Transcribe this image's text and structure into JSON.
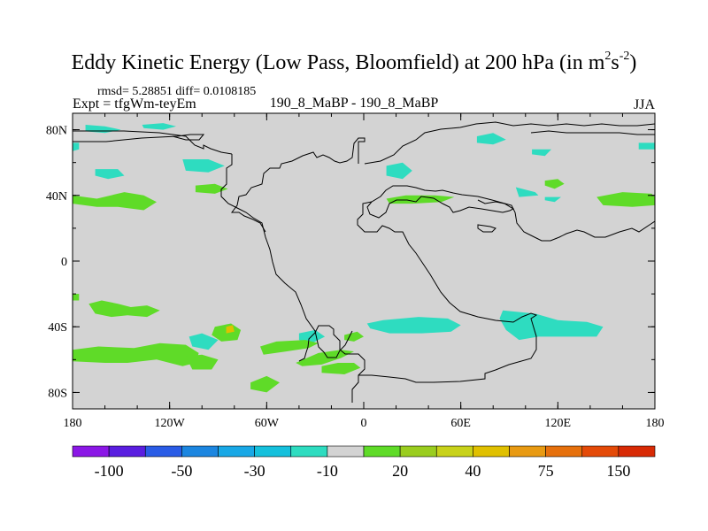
{
  "title": {
    "main": "Eddy Kinetic Energy (Low Pass, Bloomfield) at 200 hPa (in m",
    "sup1": "2",
    "mid": "s",
    "sup2": "-2",
    "end": ")"
  },
  "stats": {
    "rmsd_text": "rmsd= 5.28851 diff= 0.0108185"
  },
  "expt_label": "Expt = tfgWm-teyEm",
  "subtitle": "190_8_MaBP - 190_8_MaBP",
  "season": "JJA",
  "colors": {
    "background": "#d3d3d3",
    "map_bg": "#d3d3d3",
    "coast": "#000000",
    "pos_light": "#5fdb28",
    "neg_light": "#2edcc0",
    "pos_mid": "#e0c000"
  },
  "chart_data": {
    "type": "heatmap",
    "title": "Eddy Kinetic Energy (Low Pass, Bloomfield) at 200 hPa (in m2s-2)",
    "subtitle": "190_8_MaBP - 190_8_MaBP",
    "season": "JJA",
    "xlim": [
      -180,
      180
    ],
    "ylim": [
      -90,
      90
    ],
    "x_ticks": [
      {
        "value": -180,
        "label": "180"
      },
      {
        "value": -120,
        "label": "120W"
      },
      {
        "value": -60,
        "label": "60W"
      },
      {
        "value": 0,
        "label": "0"
      },
      {
        "value": 60,
        "label": "60E"
      },
      {
        "value": 120,
        "label": "120E"
      },
      {
        "value": 180,
        "label": "180"
      }
    ],
    "y_ticks": [
      {
        "value": 80,
        "label": "80N"
      },
      {
        "value": 40,
        "label": "40N"
      },
      {
        "value": 0,
        "label": "0"
      },
      {
        "value": -40,
        "label": "40S"
      },
      {
        "value": -80,
        "label": "80S"
      }
    ],
    "colorbar": {
      "colors": [
        "#8b17e6",
        "#5a1ee0",
        "#2a5ce6",
        "#1c86e0",
        "#19a8e6",
        "#15c0dc",
        "#2edcc0",
        "#d3d3d3",
        "#5fdb28",
        "#9acd1f",
        "#c8d21a",
        "#e0c000",
        "#e89a12",
        "#e6700c",
        "#e44a08",
        "#d82a05"
      ],
      "labels": [
        {
          "boundary": 1,
          "text": "-100"
        },
        {
          "boundary": 3,
          "text": "-50"
        },
        {
          "boundary": 5,
          "text": "-30"
        },
        {
          "boundary": 7,
          "text": "-10"
        },
        {
          "boundary": 9,
          "text": "20"
        },
        {
          "boundary": 11,
          "text": "40"
        },
        {
          "boundary": 13,
          "text": "75"
        },
        {
          "boundary": 15,
          "text": "150"
        }
      ]
    },
    "regions": [
      {
        "level": "neg",
        "pts": [
          [
            -172,
            83
          ],
          [
            -160,
            82
          ],
          [
            -150,
            80
          ],
          [
            -160,
            78
          ],
          [
            -172,
            79
          ]
        ]
      },
      {
        "level": "neg",
        "pts": [
          [
            -137,
            83
          ],
          [
            -124,
            84
          ],
          [
            -116,
            82
          ],
          [
            -124,
            80
          ],
          [
            -136,
            81
          ]
        ]
      },
      {
        "level": "neg",
        "pts": [
          [
            -180,
            72
          ],
          [
            -176,
            72
          ],
          [
            -176,
            68
          ],
          [
            -180,
            67
          ]
        ]
      },
      {
        "level": "neg",
        "pts": [
          [
            -166,
            56
          ],
          [
            -152,
            56
          ],
          [
            -148,
            52
          ],
          [
            -158,
            50
          ],
          [
            -166,
            52
          ]
        ]
      },
      {
        "level": "neg",
        "pts": [
          [
            -112,
            62
          ],
          [
            -96,
            62
          ],
          [
            -86,
            58
          ],
          [
            -96,
            54
          ],
          [
            -110,
            55
          ]
        ]
      },
      {
        "level": "neg",
        "pts": [
          [
            14,
            58
          ],
          [
            24,
            60
          ],
          [
            30,
            55
          ],
          [
            24,
            50
          ],
          [
            14,
            52
          ]
        ]
      },
      {
        "level": "neg",
        "pts": [
          [
            70,
            76
          ],
          [
            80,
            78
          ],
          [
            88,
            74
          ],
          [
            80,
            71
          ],
          [
            70,
            72
          ]
        ]
      },
      {
        "level": "neg",
        "pts": [
          [
            104,
            68
          ],
          [
            116,
            68
          ],
          [
            112,
            64
          ],
          [
            104,
            65
          ]
        ]
      },
      {
        "level": "neg",
        "pts": [
          [
            170,
            72
          ],
          [
            180,
            72
          ],
          [
            180,
            68
          ],
          [
            170,
            68
          ]
        ]
      },
      {
        "level": "neg",
        "pts": [
          [
            94,
            45
          ],
          [
            106,
            42
          ],
          [
            108,
            40
          ],
          [
            96,
            39
          ]
        ]
      },
      {
        "level": "neg",
        "pts": [
          [
            112,
            39
          ],
          [
            122,
            39
          ],
          [
            118,
            36
          ],
          [
            112,
            37
          ]
        ]
      },
      {
        "level": "neg",
        "pts": [
          [
            2,
            -38
          ],
          [
            12,
            -36
          ],
          [
            34,
            -34
          ],
          [
            52,
            -35
          ],
          [
            60,
            -39
          ],
          [
            54,
            -43
          ],
          [
            36,
            -44
          ],
          [
            16,
            -44
          ],
          [
            4,
            -41
          ]
        ]
      },
      {
        "level": "neg",
        "pts": [
          [
            86,
            -30
          ],
          [
            106,
            -32
          ],
          [
            120,
            -36
          ],
          [
            138,
            -37
          ],
          [
            148,
            -40
          ],
          [
            144,
            -46
          ],
          [
            126,
            -46
          ],
          [
            108,
            -46
          ],
          [
            96,
            -48
          ],
          [
            88,
            -42
          ],
          [
            84,
            -35
          ]
        ]
      },
      {
        "level": "neg",
        "pts": [
          [
            -108,
            -46
          ],
          [
            -100,
            -44
          ],
          [
            -90,
            -48
          ],
          [
            -96,
            -54
          ],
          [
            -106,
            -52
          ]
        ]
      },
      {
        "level": "neg",
        "pts": [
          [
            -40,
            -44
          ],
          [
            -30,
            -42
          ],
          [
            -24,
            -46
          ],
          [
            -32,
            -50
          ],
          [
            -40,
            -48
          ]
        ]
      },
      {
        "level": "pos",
        "pts": [
          [
            -180,
            40
          ],
          [
            -165,
            38
          ],
          [
            -148,
            42
          ],
          [
            -136,
            40
          ],
          [
            -128,
            36
          ],
          [
            -136,
            31
          ],
          [
            -152,
            33
          ],
          [
            -165,
            33
          ],
          [
            -180,
            35
          ]
        ]
      },
      {
        "level": "pos",
        "pts": [
          [
            -104,
            46
          ],
          [
            -92,
            47
          ],
          [
            -84,
            44
          ],
          [
            -92,
            41
          ],
          [
            -104,
            42
          ]
        ]
      },
      {
        "level": "pos",
        "pts": [
          [
            14,
            38
          ],
          [
            26,
            40
          ],
          [
            44,
            40
          ],
          [
            56,
            39
          ],
          [
            48,
            36
          ],
          [
            30,
            35
          ],
          [
            16,
            35
          ]
        ]
      },
      {
        "level": "pos",
        "pts": [
          [
            112,
            49
          ],
          [
            120,
            50
          ],
          [
            124,
            47
          ],
          [
            118,
            44
          ],
          [
            112,
            46
          ]
        ]
      },
      {
        "level": "pos",
        "pts": [
          [
            144,
            39
          ],
          [
            160,
            42
          ],
          [
            178,
            41
          ],
          [
            180,
            39
          ],
          [
            180,
            34
          ],
          [
            166,
            33
          ],
          [
            148,
            34
          ]
        ]
      },
      {
        "level": "pos",
        "pts": [
          [
            -170,
            -26
          ],
          [
            -162,
            -24
          ],
          [
            -152,
            -26
          ],
          [
            -144,
            -28
          ],
          [
            -134,
            -27
          ],
          [
            -126,
            -30
          ],
          [
            -134,
            -34
          ],
          [
            -146,
            -33
          ],
          [
            -156,
            -34
          ],
          [
            -166,
            -32
          ]
        ]
      },
      {
        "level": "pos",
        "pts": [
          [
            -92,
            -40
          ],
          [
            -82,
            -38
          ],
          [
            -76,
            -42
          ],
          [
            -78,
            -48
          ],
          [
            -88,
            -49
          ],
          [
            -94,
            -45
          ]
        ]
      },
      {
        "level": "pos",
        "pts": [
          [
            -180,
            -54
          ],
          [
            -164,
            -52
          ],
          [
            -142,
            -53
          ],
          [
            -126,
            -50
          ],
          [
            -110,
            -51
          ],
          [
            -102,
            -56
          ],
          [
            -104,
            -62
          ],
          [
            -112,
            -64
          ],
          [
            -128,
            -60
          ],
          [
            -146,
            -62
          ],
          [
            -160,
            -62
          ],
          [
            -180,
            -61
          ]
        ]
      },
      {
        "level": "pos",
        "pts": [
          [
            -110,
            -58
          ],
          [
            -100,
            -57
          ],
          [
            -90,
            -60
          ],
          [
            -94,
            -66
          ],
          [
            -106,
            -66
          ]
        ]
      },
      {
        "level": "pos",
        "pts": [
          [
            -64,
            -52
          ],
          [
            -54,
            -49
          ],
          [
            -36,
            -48
          ],
          [
            -28,
            -50
          ],
          [
            -34,
            -53
          ],
          [
            -48,
            -55
          ],
          [
            -62,
            -57
          ]
        ]
      },
      {
        "level": "pos",
        "pts": [
          [
            -42,
            -62
          ],
          [
            -28,
            -56
          ],
          [
            -14,
            -54
          ],
          [
            -6,
            -55
          ],
          [
            -14,
            -59
          ],
          [
            -26,
            -63
          ],
          [
            -38,
            -64
          ]
        ]
      },
      {
        "level": "pos",
        "pts": [
          [
            -26,
            -64
          ],
          [
            -16,
            -62
          ],
          [
            -6,
            -62
          ],
          [
            -2,
            -65
          ],
          [
            -12,
            -69
          ],
          [
            -26,
            -68
          ]
        ]
      },
      {
        "level": "pos",
        "pts": [
          [
            -70,
            -74
          ],
          [
            -60,
            -70
          ],
          [
            -52,
            -74
          ],
          [
            -60,
            -80
          ],
          [
            -70,
            -78
          ]
        ]
      },
      {
        "level": "pos",
        "pts": [
          [
            -180,
            -20
          ],
          [
            -176,
            -20
          ],
          [
            -176,
            -24
          ],
          [
            -180,
            -24
          ]
        ]
      },
      {
        "level": "pos",
        "pts": [
          [
            -12,
            -45
          ],
          [
            -4,
            -43
          ],
          [
            0,
            -46
          ],
          [
            -6,
            -49
          ],
          [
            -12,
            -48
          ]
        ]
      },
      {
        "level": "mid",
        "pts": [
          [
            -85,
            -40
          ],
          [
            -81,
            -39
          ],
          [
            -80,
            -43
          ],
          [
            -85,
            -44
          ]
        ]
      }
    ]
  }
}
